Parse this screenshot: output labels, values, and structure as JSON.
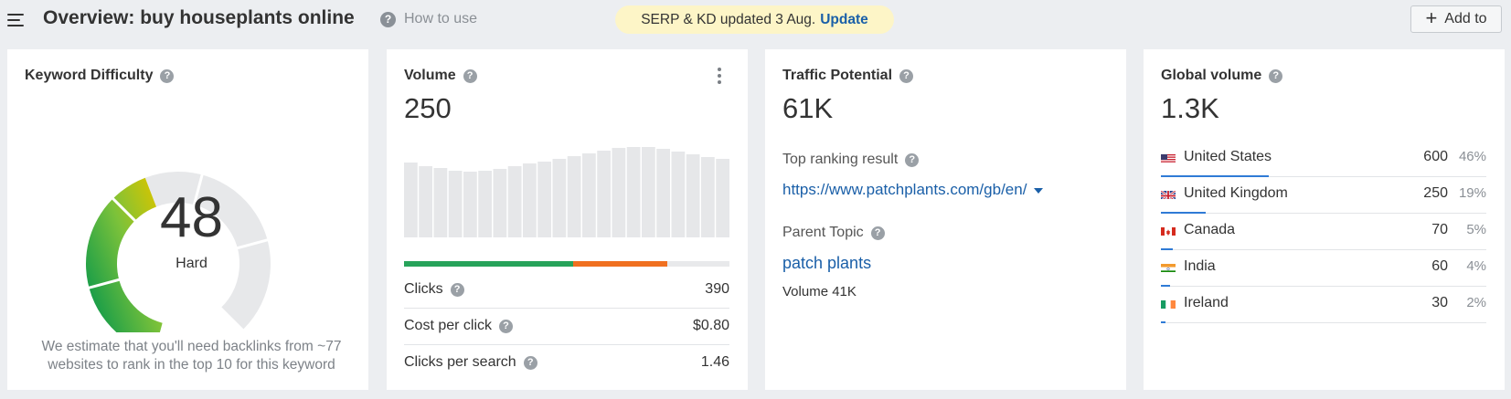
{
  "header": {
    "title": "Overview: buy houseplants online",
    "help_label": "How to use",
    "notice_text": "SERP & KD updated 3 Aug.",
    "notice_action": "Update",
    "add_button_label": "Add to"
  },
  "kd_card": {
    "title": "Keyword Difficulty",
    "value": "48",
    "label": "Hard",
    "fill_fraction": 0.48,
    "note": "We estimate that you'll need backlinks from ~77 websites to rank in the top 10 for this keyword"
  },
  "volume_card": {
    "title": "Volume",
    "value": "250",
    "trend_relative": [
      0.82,
      0.78,
      0.76,
      0.73,
      0.72,
      0.73,
      0.75,
      0.78,
      0.81,
      0.83,
      0.86,
      0.89,
      0.92,
      0.95,
      0.98,
      0.99,
      0.99,
      0.97,
      0.94,
      0.91,
      0.88,
      0.86
    ],
    "clicks_split": {
      "organic": 0.52,
      "paid": 0.29
    },
    "metrics": [
      {
        "label": "Clicks",
        "value": "390"
      },
      {
        "label": "Cost per click",
        "value": "$0.80"
      },
      {
        "label": "Clicks per search",
        "value": "1.46"
      }
    ]
  },
  "traffic_card": {
    "title": "Traffic Potential",
    "value": "61K",
    "top_result_label": "Top ranking result",
    "top_result_url": "https://www.patchplants.com/gb/en/",
    "parent_topic_label": "Parent Topic",
    "parent_topic": "patch plants",
    "parent_volume": "Volume 41K"
  },
  "global_card": {
    "title": "Global volume",
    "value": "1.3K",
    "countries": [
      {
        "name": "United States",
        "volume": "600",
        "percent": "46%",
        "share": 0.46,
        "flag": "us-flag-icon"
      },
      {
        "name": "United Kingdom",
        "volume": "250",
        "percent": "19%",
        "share": 0.19,
        "flag": "uk-flag-icon"
      },
      {
        "name": "Canada",
        "volume": "70",
        "percent": "5%",
        "share": 0.05,
        "flag": "canada-flag-icon"
      },
      {
        "name": "India",
        "volume": "60",
        "percent": "4%",
        "share": 0.04,
        "flag": "india-flag-icon"
      },
      {
        "name": "Ireland",
        "volume": "30",
        "percent": "2%",
        "share": 0.02,
        "flag": "ireland-flag-icon"
      }
    ]
  },
  "colors": {
    "link": "#1a5fa8",
    "organic": "#27a35a",
    "paid": "#f07020",
    "share_bar": "#2f7bd6"
  }
}
